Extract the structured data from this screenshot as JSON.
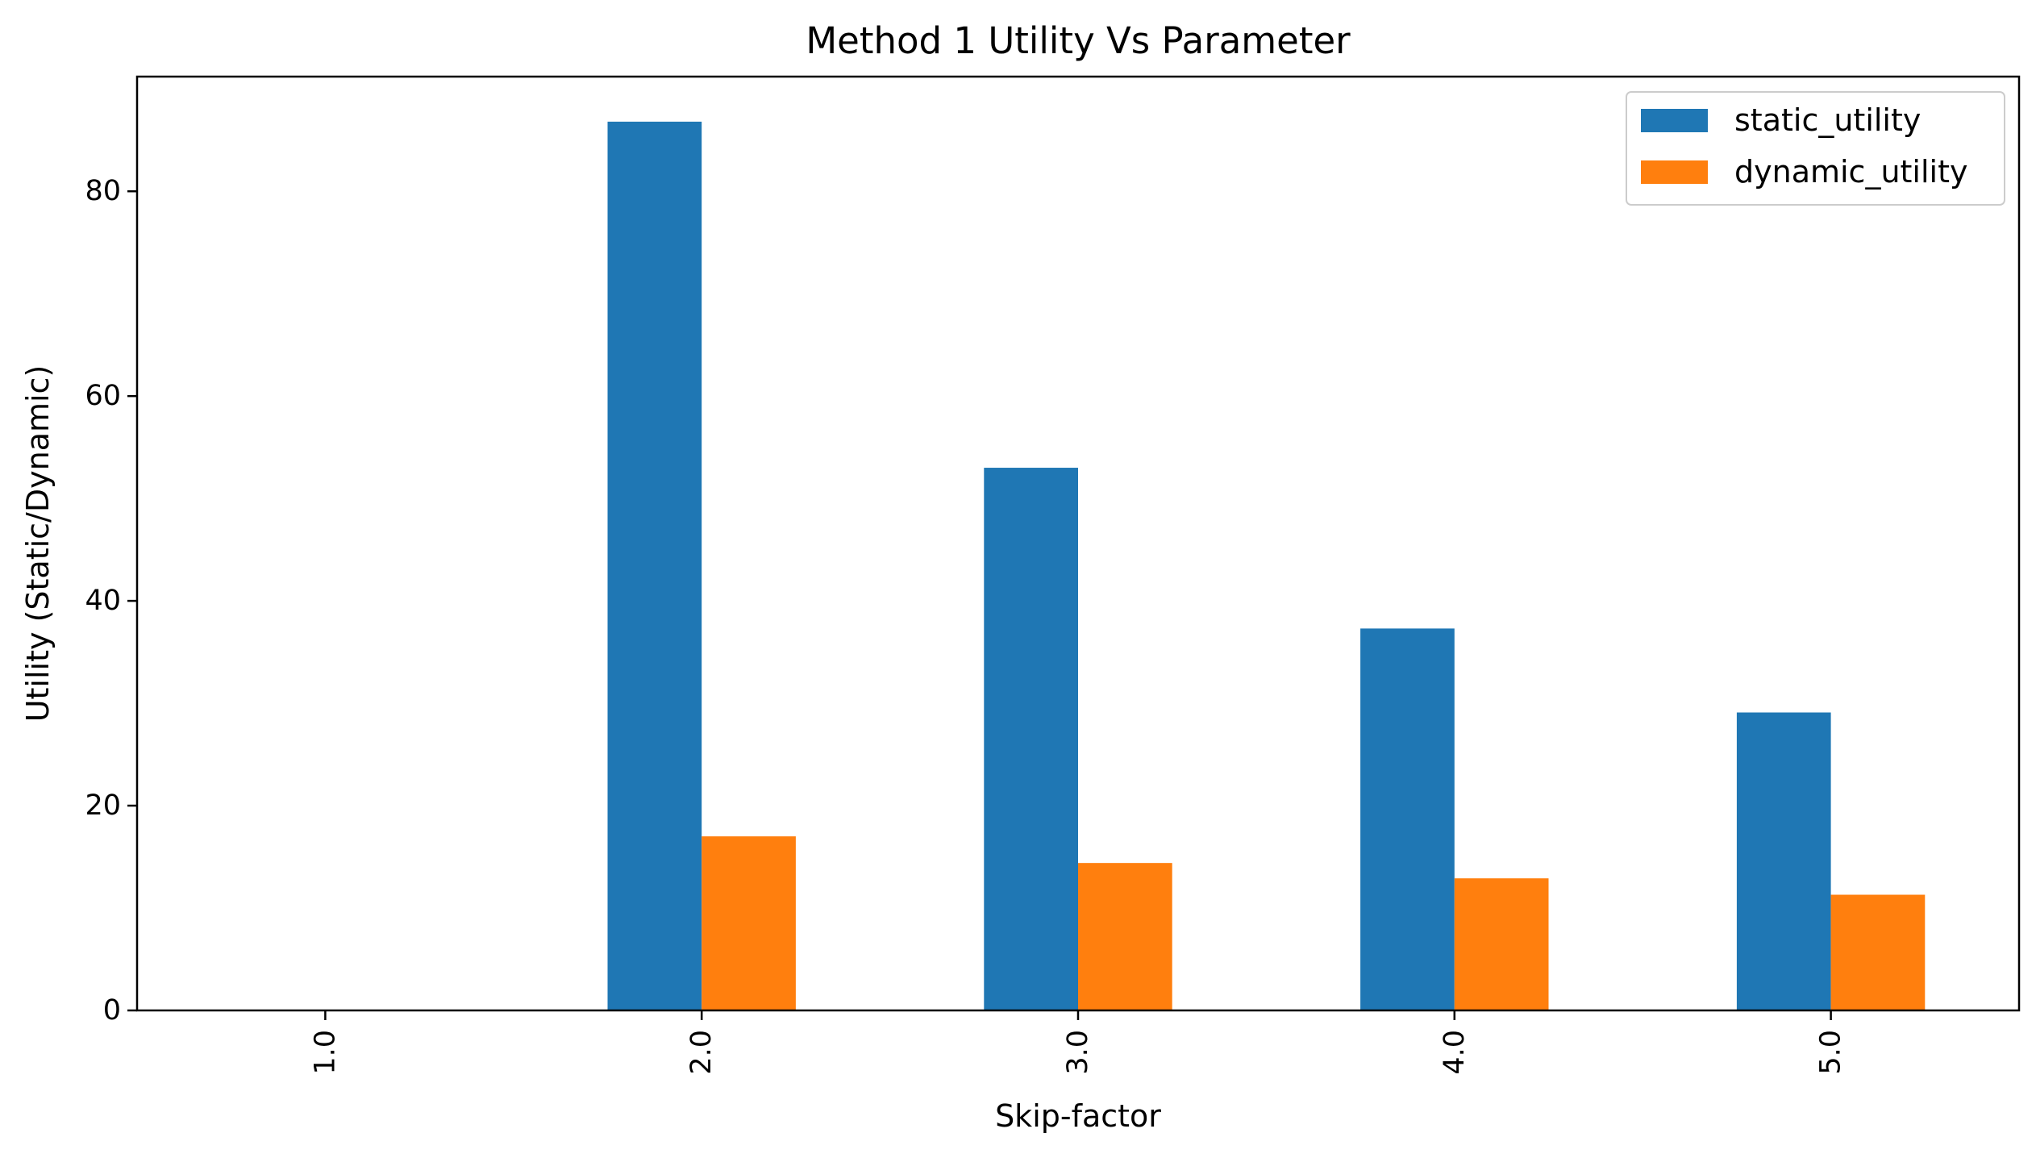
{
  "chart_data": {
    "type": "bar",
    "title": "Method 1 Utility Vs Parameter",
    "xlabel": "Skip-factor",
    "ylabel": "Utility (Static/Dynamic)",
    "categories": [
      "1.0",
      "2.0",
      "3.0",
      "4.0",
      "5.0"
    ],
    "series": [
      {
        "name": "static_utility",
        "color": "#1f77b4",
        "values": [
          0,
          86.8,
          53.0,
          37.3,
          29.1
        ]
      },
      {
        "name": "dynamic_utility",
        "color": "#ff7f0e",
        "values": [
          0,
          17.0,
          14.4,
          12.9,
          11.3
        ]
      }
    ],
    "ylim": [
      0,
      91.2
    ],
    "yticks": [
      0,
      20,
      40,
      60,
      80
    ],
    "grid": false,
    "legend_position": "top-right",
    "xtick_rotation": "vertical"
  }
}
